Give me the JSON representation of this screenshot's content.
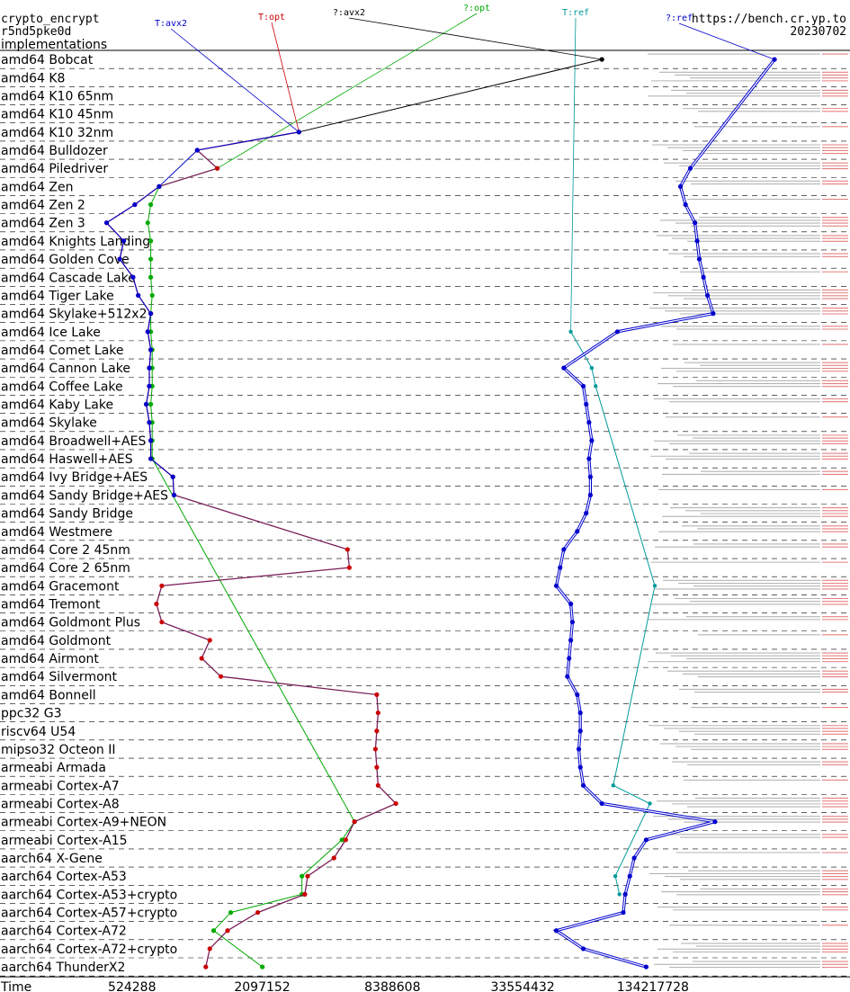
{
  "header": {
    "left_lines": [
      "crypto_encrypt",
      "r5nd5pke0d",
      "implementations"
    ],
    "right_lines": [
      "https://bench.cr.yp.to",
      "20230702"
    ]
  },
  "chart_data": {
    "type": "line",
    "title": "",
    "xlabel": "Time",
    "x_scale": "log2",
    "x_ticks": [
      524288,
      2097152,
      8388608,
      33554432,
      134217728
    ],
    "x_tick_labels": [
      "524288",
      "2097152",
      "8388608",
      "33554432",
      "134217728"
    ],
    "xlim": [
      131072,
      1073741824
    ],
    "grid": "dashed horizontal lines between rows",
    "legend": "labels at top of each series",
    "categories": [
      "amd64 Bobcat",
      "amd64 K8",
      "amd64 K10 65nm",
      "amd64 K10 45nm",
      "amd64 K10 32nm",
      "amd64 Bulldozer",
      "amd64 Piledriver",
      "amd64 Zen",
      "amd64 Zen 2",
      "amd64 Zen 3",
      "amd64 Knights Landing",
      "amd64 Golden Cove",
      "amd64 Cascade Lake",
      "amd64 Tiger Lake",
      "amd64 Skylake+512x2",
      "amd64 Ice Lake",
      "amd64 Comet Lake",
      "amd64 Cannon Lake",
      "amd64 Coffee Lake",
      "amd64 Kaby Lake",
      "amd64 Skylake",
      "amd64 Broadwell+AES",
      "amd64 Haswell+AES",
      "amd64 Ivy Bridge+AES",
      "amd64 Sandy Bridge+AES",
      "amd64 Sandy Bridge",
      "amd64 Westmere",
      "amd64 Core 2 45nm",
      "amd64 Core 2 65nm",
      "amd64 Gracemont",
      "amd64 Tremont",
      "amd64 Goldmont Plus",
      "amd64 Goldmont",
      "amd64 Airmont",
      "amd64 Silvermont",
      "amd64 Bonnell",
      "ppc32 G3",
      "riscv64 U54",
      "mipso32 Octeon II",
      "armeabi Armada",
      "armeabi Cortex-A7",
      "armeabi Cortex-A8",
      "armeabi Cortex-A9+NEON",
      "armeabi Cortex-A15",
      "aarch64 X-Gene",
      "aarch64 Cortex-A53",
      "aarch64 Cortex-A53+crypto",
      "aarch64 Cortex-A57+crypto",
      "aarch64 Cortex-A72",
      "aarch64 Cortex-A72+crypto",
      "aarch64 ThunderX2"
    ],
    "series": [
      {
        "name": "T:avx2",
        "color": "#0000cc",
        "points": [
          {
            "row": 4,
            "x": 3100000
          },
          {
            "row": 5,
            "x": 1050000
          },
          {
            "row": 7,
            "x": 700000
          },
          {
            "row": 8,
            "x": 540000
          },
          {
            "row": 9,
            "x": 400000
          },
          {
            "row": 10,
            "x": 480000
          },
          {
            "row": 11,
            "x": 460000
          },
          {
            "row": 12,
            "x": 530000
          },
          {
            "row": 13,
            "x": 560000
          },
          {
            "row": 14,
            "x": 640000
          },
          {
            "row": 15,
            "x": 620000
          },
          {
            "row": 16,
            "x": 640000
          },
          {
            "row": 17,
            "x": 630000
          },
          {
            "row": 18,
            "x": 630000
          },
          {
            "row": 19,
            "x": 610000
          },
          {
            "row": 20,
            "x": 630000
          },
          {
            "row": 21,
            "x": 640000
          },
          {
            "row": 22,
            "x": 640000
          },
          {
            "row": 23,
            "x": 810000
          },
          {
            "row": 24,
            "x": 820000
          }
        ]
      },
      {
        "name": "T:opt",
        "color": "#cc0000",
        "points": [
          {
            "row": 4,
            "x": 3100000
          },
          {
            "row": 5,
            "x": 1050000
          },
          {
            "row": 6,
            "x": 1300000
          },
          {
            "row": 7,
            "x": 700000
          },
          {
            "row": 8,
            "x": 540000
          },
          {
            "row": 9,
            "x": 400000
          },
          {
            "row": 10,
            "x": 480000
          },
          {
            "row": 11,
            "x": 460000
          },
          {
            "row": 12,
            "x": 530000
          },
          {
            "row": 13,
            "x": 560000
          },
          {
            "row": 14,
            "x": 640000
          },
          {
            "row": 15,
            "x": 620000
          },
          {
            "row": 16,
            "x": 640000
          },
          {
            "row": 17,
            "x": 630000
          },
          {
            "row": 18,
            "x": 630000
          },
          {
            "row": 19,
            "x": 610000
          },
          {
            "row": 20,
            "x": 630000
          },
          {
            "row": 21,
            "x": 640000
          },
          {
            "row": 22,
            "x": 640000
          },
          {
            "row": 23,
            "x": 810000
          },
          {
            "row": 24,
            "x": 820000
          },
          {
            "row": 27,
            "x": 5200000
          },
          {
            "row": 28,
            "x": 5300000
          },
          {
            "row": 29,
            "x": 720000
          },
          {
            "row": 30,
            "x": 680000
          },
          {
            "row": 31,
            "x": 720000
          },
          {
            "row": 32,
            "x": 1200000
          },
          {
            "row": 33,
            "x": 1100000
          },
          {
            "row": 34,
            "x": 1350000
          },
          {
            "row": 35,
            "x": 7100000
          },
          {
            "row": 36,
            "x": 7200000
          },
          {
            "row": 37,
            "x": 7100000
          },
          {
            "row": 38,
            "x": 7000000
          },
          {
            "row": 39,
            "x": 7100000
          },
          {
            "row": 40,
            "x": 7200000
          },
          {
            "row": 41,
            "x": 8700000
          },
          {
            "row": 42,
            "x": 5600000
          },
          {
            "row": 43,
            "x": 5100000
          },
          {
            "row": 44,
            "x": 4500000
          },
          {
            "row": 45,
            "x": 3400000
          },
          {
            "row": 46,
            "x": 3300000
          },
          {
            "row": 47,
            "x": 2000000
          },
          {
            "row": 48,
            "x": 1450000
          },
          {
            "row": 49,
            "x": 1200000
          },
          {
            "row": 50,
            "x": 1150000
          }
        ]
      },
      {
        "name": "?:avx2",
        "color": "#000000",
        "points": [
          {
            "row": 0,
            "x": 78000000
          },
          {
            "row": 4,
            "x": 3100000
          }
        ]
      },
      {
        "name": "?:opt",
        "color": "#00aa00",
        "points": [
          {
            "row": 6,
            "x": 1300000
          },
          {
            "row": 7,
            "x": 700000
          },
          {
            "row": 8,
            "x": 640000
          },
          {
            "row": 9,
            "x": 620000
          },
          {
            "row": 10,
            "x": 640000
          },
          {
            "row": 11,
            "x": 640000
          },
          {
            "row": 12,
            "x": 640000
          },
          {
            "row": 13,
            "x": 650000
          },
          {
            "row": 14,
            "x": 640000
          },
          {
            "row": 15,
            "x": 640000
          },
          {
            "row": 16,
            "x": 650000
          },
          {
            "row": 17,
            "x": 650000
          },
          {
            "row": 18,
            "x": 650000
          },
          {
            "row": 19,
            "x": 640000
          },
          {
            "row": 20,
            "x": 650000
          },
          {
            "row": 21,
            "x": 650000
          },
          {
            "row": 22,
            "x": 650000
          },
          {
            "row": 42,
            "x": 5600000
          },
          {
            "row": 43,
            "x": 4900000
          },
          {
            "row": 45,
            "x": 3200000
          },
          {
            "row": 46,
            "x": 3200000
          },
          {
            "row": 47,
            "x": 1500000
          },
          {
            "row": 48,
            "x": 1250000
          },
          {
            "row": 50,
            "x": 2100000
          }
        ]
      },
      {
        "name": "T:ref",
        "color": "#009999",
        "points": [
          {
            "row": 15,
            "x": 56000000
          },
          {
            "row": 17,
            "x": 70000000
          },
          {
            "row": 18,
            "x": 73000000
          },
          {
            "row": 29,
            "x": 137000000
          },
          {
            "row": 40,
            "x": 88000000
          },
          {
            "row": 41,
            "x": 130000000
          },
          {
            "row": 45,
            "x": 90000000
          },
          {
            "row": 46,
            "x": 94000000
          }
        ]
      },
      {
        "name": "?:ref",
        "color": "#0000cc",
        "points": [
          {
            "row": 0,
            "x": 490000000
          },
          {
            "row": 6,
            "x": 200000000
          },
          {
            "row": 7,
            "x": 180000000
          },
          {
            "row": 8,
            "x": 190000000
          },
          {
            "row": 9,
            "x": 210000000
          },
          {
            "row": 10,
            "x": 215000000
          },
          {
            "row": 11,
            "x": 220000000
          },
          {
            "row": 12,
            "x": 230000000
          },
          {
            "row": 13,
            "x": 240000000
          },
          {
            "row": 14,
            "x": 255000000
          },
          {
            "row": 15,
            "x": 92000000
          },
          {
            "row": 17,
            "x": 52000000
          },
          {
            "row": 18,
            "x": 64000000
          },
          {
            "row": 19,
            "x": 66000000
          },
          {
            "row": 20,
            "x": 68000000
          },
          {
            "row": 21,
            "x": 70000000
          },
          {
            "row": 22,
            "x": 68000000
          },
          {
            "row": 23,
            "x": 69000000
          },
          {
            "row": 24,
            "x": 69000000
          },
          {
            "row": 25,
            "x": 66000000
          },
          {
            "row": 26,
            "x": 60000000
          },
          {
            "row": 27,
            "x": 52000000
          },
          {
            "row": 28,
            "x": 50000000
          },
          {
            "row": 29,
            "x": 48000000
          },
          {
            "row": 30,
            "x": 56000000
          },
          {
            "row": 31,
            "x": 57000000
          },
          {
            "row": 32,
            "x": 56000000
          },
          {
            "row": 33,
            "x": 55000000
          },
          {
            "row": 34,
            "x": 54000000
          },
          {
            "row": 35,
            "x": 60000000
          },
          {
            "row": 36,
            "x": 62000000
          },
          {
            "row": 37,
            "x": 62000000
          },
          {
            "row": 38,
            "x": 61000000
          },
          {
            "row": 39,
            "x": 62000000
          },
          {
            "row": 40,
            "x": 64000000
          },
          {
            "row": 41,
            "x": 78000000
          },
          {
            "row": 42,
            "x": 260000000
          },
          {
            "row": 43,
            "x": 125000000
          },
          {
            "row": 44,
            "x": 110000000
          },
          {
            "row": 45,
            "x": 105000000
          },
          {
            "row": 46,
            "x": 100000000
          },
          {
            "row": 47,
            "x": 98000000
          },
          {
            "row": 48,
            "x": 48000000
          },
          {
            "row": 49,
            "x": 64000000
          },
          {
            "row": 50,
            "x": 125000000
          }
        ]
      }
    ]
  }
}
